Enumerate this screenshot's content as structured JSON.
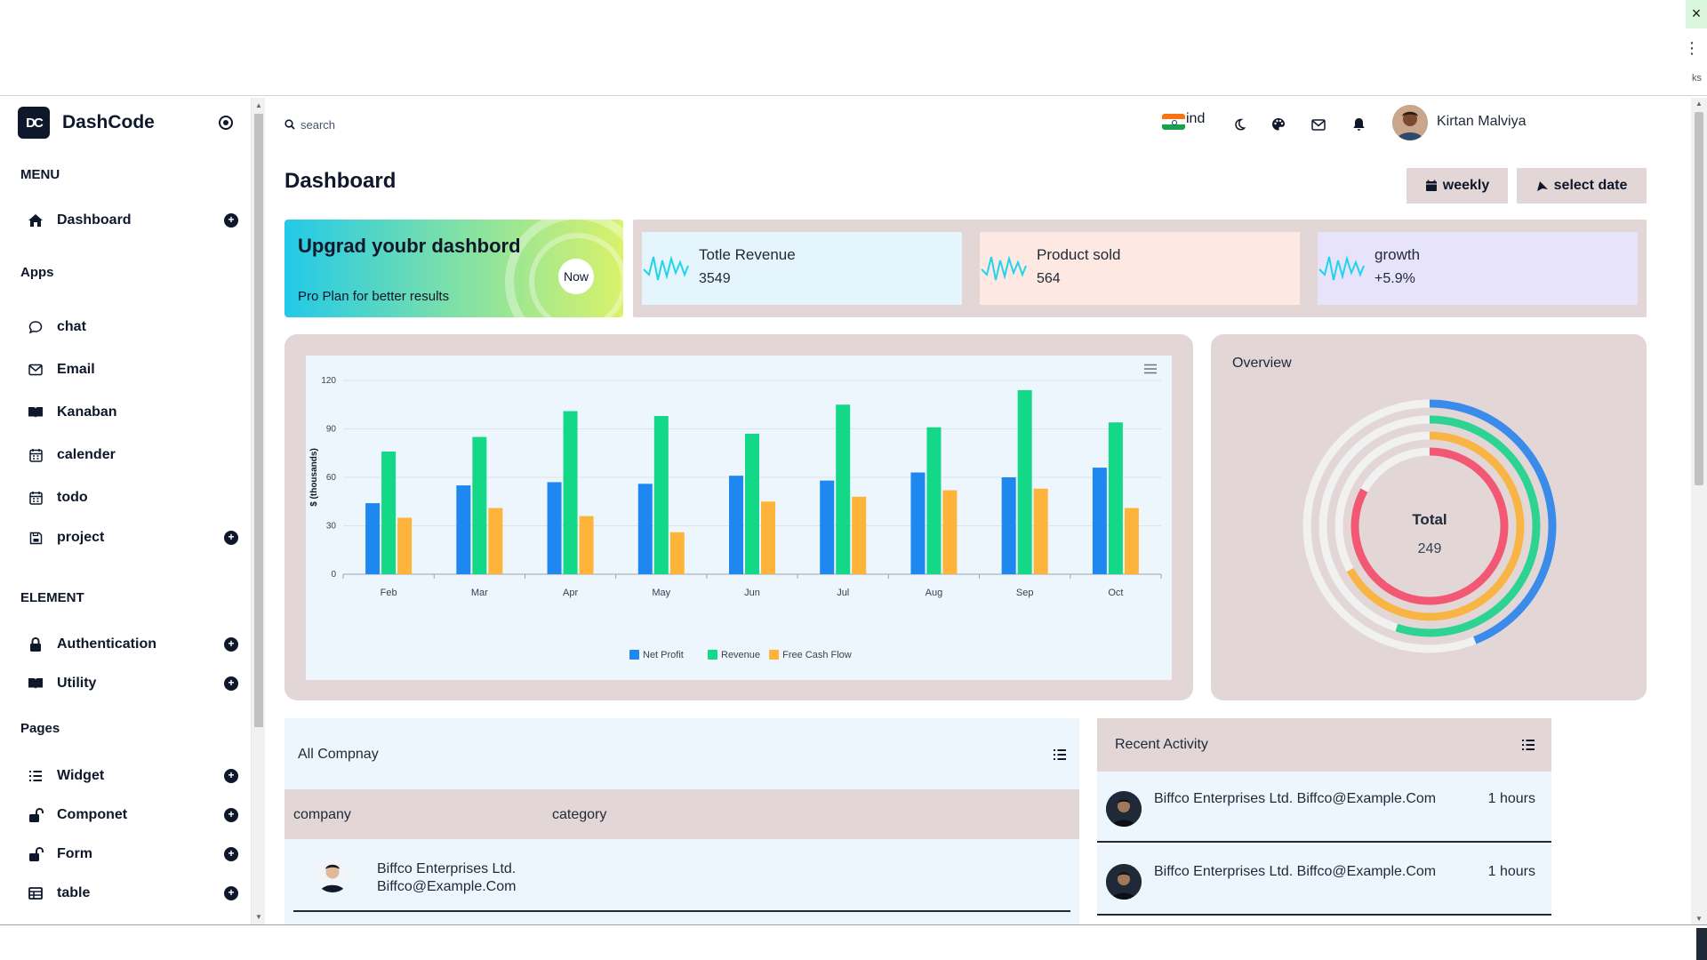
{
  "chrome": {
    "close_glyph": "×",
    "more_glyph": "⋮",
    "corner_text": "ks"
  },
  "brand": {
    "logo_text": "DC",
    "name": "DashCode"
  },
  "sidebar": {
    "menu_title": "MENU",
    "dashboard": "Dashboard",
    "apps_title": "Apps",
    "apps": [
      "chat",
      "Email",
      "Kanaban",
      "calender",
      "todo",
      "project"
    ],
    "element_title": "ELEMENT",
    "elements": [
      "Authentication",
      "Utility"
    ],
    "pages_title": "Pages",
    "pages": [
      "Widget",
      "Componet",
      "Form",
      "table"
    ]
  },
  "topbar": {
    "search_placeholder": "search",
    "language": "ind",
    "user_name": "Kirtan Malviya"
  },
  "page": {
    "title": "Dashboard",
    "weekly_button": "weekly",
    "date_button": "select date"
  },
  "promo": {
    "title": "Upgrad youbr dashbord",
    "subtitle": "Pro Plan for better results",
    "button": "Now"
  },
  "stats": [
    {
      "label": "Totle Revenue",
      "value": "3549",
      "bg": "#e4f5fb"
    },
    {
      "label": "Product sold",
      "value": "564",
      "bg": "#fde9e1"
    },
    {
      "label": "growth",
      "value": "+5.9%",
      "bg": "#e6e3fb"
    }
  ],
  "chart_data": {
    "type": "bar",
    "categories": [
      "Feb",
      "Mar",
      "Apr",
      "May",
      "Jun",
      "Jul",
      "Aug",
      "Sep",
      "Oct"
    ],
    "series": [
      {
        "name": "Net Profit",
        "color": "#1e88f0",
        "values": [
          44,
          55,
          57,
          56,
          61,
          58,
          63,
          60,
          66
        ]
      },
      {
        "name": "Revenue",
        "color": "#12d887",
        "values": [
          76,
          85,
          101,
          98,
          87,
          105,
          91,
          114,
          94
        ]
      },
      {
        "name": "Free Cash Flow",
        "color": "#feb43a",
        "values": [
          35,
          41,
          36,
          26,
          45,
          48,
          52,
          53,
          41
        ]
      }
    ],
    "ylabel": "$ (thousands)",
    "ylim": [
      0,
      120
    ],
    "yticks": [
      0,
      30,
      60,
      90,
      120
    ],
    "grid": true,
    "legend": "bottom-center"
  },
  "overview": {
    "title": "Overview",
    "center_label": "Total",
    "center_value": "249",
    "rings": [
      {
        "color": "#3b8bea",
        "fraction": 0.44
      },
      {
        "color": "#2ed392",
        "fraction": 0.55
      },
      {
        "color": "#f8b545",
        "fraction": 0.67
      },
      {
        "color": "#f25774",
        "fraction": 0.83
      }
    ]
  },
  "company": {
    "title": "All Compnay",
    "columns": [
      "company",
      "category"
    ],
    "rows": [
      {
        "name": "Biffco Enterprises Ltd.",
        "email": "Biffco@Example.Com"
      }
    ]
  },
  "activity": {
    "title": "Recent Activity",
    "rows": [
      {
        "text": "Biffco Enterprises Ltd. Biffco@Example.Com",
        "time": "1 hours"
      },
      {
        "text": "Biffco Enterprises Ltd. Biffco@Example.Com",
        "time": "1 hours"
      }
    ]
  }
}
